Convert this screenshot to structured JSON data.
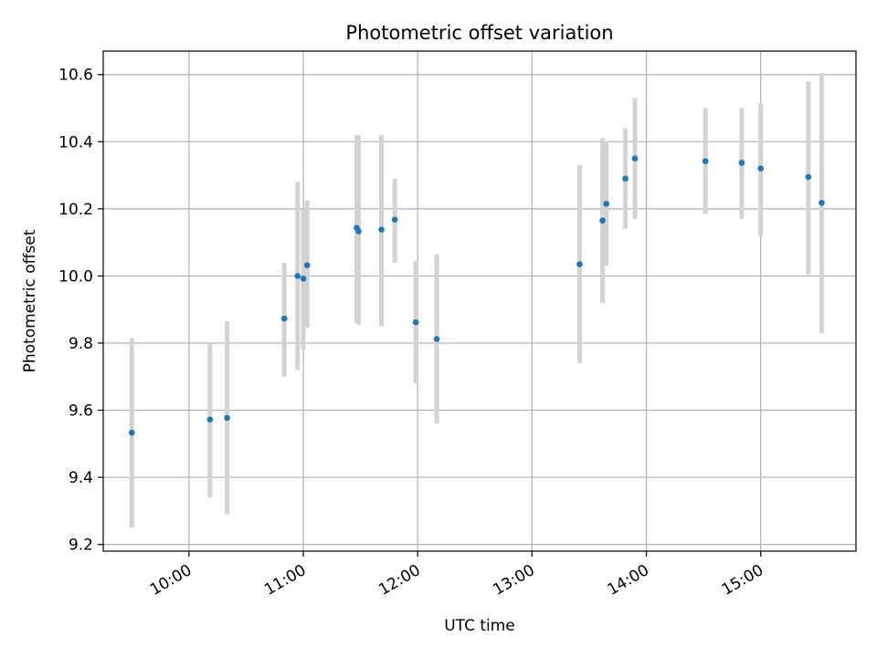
{
  "chart_data": {
    "type": "scatter",
    "title": "Photometric offset variation",
    "xlabel": "UTC time",
    "ylabel": "Photometric offset",
    "xlim": [
      "09:15",
      "15:50"
    ],
    "ylim": [
      9.18,
      10.67
    ],
    "x_ticks": [
      "10:00",
      "11:00",
      "12:00",
      "13:00",
      "14:00",
      "15:00"
    ],
    "y_ticks": [
      9.2,
      9.4,
      9.6,
      9.8,
      10.0,
      10.2,
      10.4,
      10.6
    ],
    "y_tick_labels": [
      "9.2",
      "9.4",
      "9.6",
      "9.8",
      "10.0",
      "10.2",
      "10.4",
      "10.6"
    ],
    "grid": true,
    "marker_color": "#1f77b4",
    "errorbar_color": "#d3d3d3",
    "points": [
      {
        "x": "09:30",
        "y": 9.533,
        "yerr": [
          9.25,
          9.815
        ]
      },
      {
        "x": "10:11",
        "y": 9.572,
        "yerr": [
          9.34,
          9.8
        ]
      },
      {
        "x": "10:20",
        "y": 9.577,
        "yerr": [
          9.29,
          9.865
        ]
      },
      {
        "x": "10:50",
        "y": 9.873,
        "yerr": [
          9.7,
          10.04
        ]
      },
      {
        "x": "10:57",
        "y": 10.0,
        "yerr": [
          9.72,
          10.28
        ]
      },
      {
        "x": "11:00",
        "y": 9.992,
        "yerr": [
          9.78,
          10.2
        ]
      },
      {
        "x": "11:02",
        "y": 10.032,
        "yerr": [
          9.845,
          10.225
        ]
      },
      {
        "x": "11:28",
        "y": 10.143,
        "yerr": [
          9.86,
          10.42
        ]
      },
      {
        "x": "11:29",
        "y": 10.133,
        "yerr": [
          9.855,
          10.42
        ]
      },
      {
        "x": "11:41",
        "y": 10.138,
        "yerr": [
          9.85,
          10.42
        ]
      },
      {
        "x": "11:48",
        "y": 10.168,
        "yerr": [
          10.04,
          10.29
        ]
      },
      {
        "x": "11:59",
        "y": 9.862,
        "yerr": [
          9.68,
          10.045
        ]
      },
      {
        "x": "12:10",
        "y": 9.812,
        "yerr": [
          9.56,
          10.065
        ]
      },
      {
        "x": "13:25",
        "y": 10.035,
        "yerr": [
          9.74,
          10.33
        ]
      },
      {
        "x": "13:37",
        "y": 10.165,
        "yerr": [
          9.92,
          10.41
        ]
      },
      {
        "x": "13:39",
        "y": 10.215,
        "yerr": [
          10.03,
          10.4
        ]
      },
      {
        "x": "13:49",
        "y": 10.29,
        "yerr": [
          10.14,
          10.44
        ]
      },
      {
        "x": "13:54",
        "y": 10.35,
        "yerr": [
          10.17,
          10.53
        ]
      },
      {
        "x": "14:31",
        "y": 10.342,
        "yerr": [
          10.185,
          10.5
        ]
      },
      {
        "x": "14:50",
        "y": 10.337,
        "yerr": [
          10.17,
          10.5
        ]
      },
      {
        "x": "15:00",
        "y": 10.32,
        "yerr": [
          10.12,
          10.515
        ]
      },
      {
        "x": "15:25",
        "y": 10.295,
        "yerr": [
          10.005,
          10.58
        ]
      },
      {
        "x": "15:32",
        "y": 10.218,
        "yerr": [
          9.83,
          10.605
        ]
      }
    ]
  }
}
